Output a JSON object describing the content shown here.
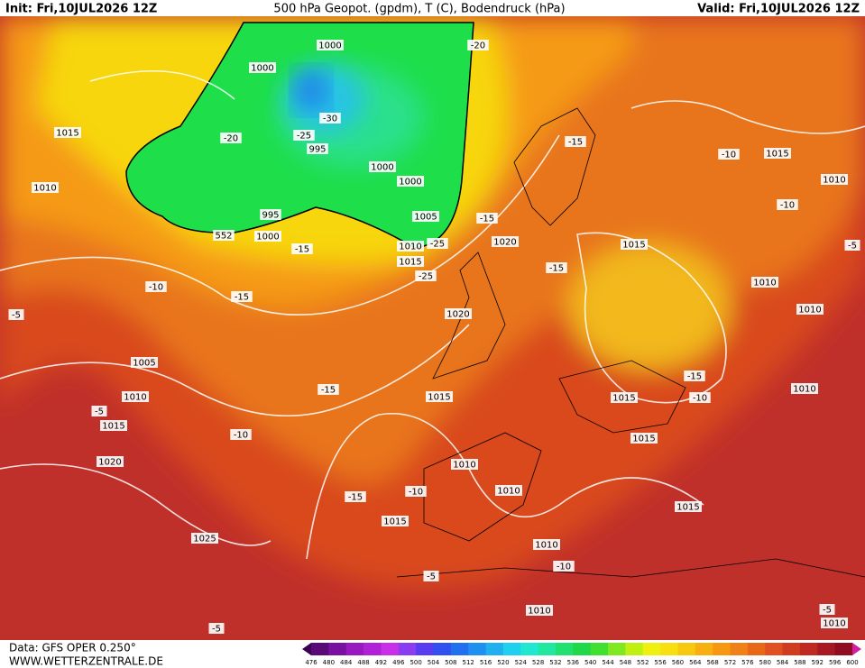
{
  "header": {
    "init": "Init: Fri,10JUL2026 12Z",
    "title": "500 hPa Geopot. (gpdm), T (C), Bodendruck (hPa)",
    "valid": "Valid: Fri,10JUL2026 12Z"
  },
  "footer": {
    "data": "Data: GFS OPER 0.250°",
    "site": "WWW.WETTERZENTRALE.DE"
  },
  "scale": [
    476,
    480,
    484,
    488,
    492,
    496,
    500,
    504,
    508,
    512,
    516,
    520,
    524,
    528,
    532,
    536,
    540,
    544,
    548,
    552,
    556,
    560,
    564,
    568,
    572,
    576,
    580,
    584,
    588,
    592,
    596,
    600
  ],
  "map_labels": [
    "1015",
    "1010",
    "1000",
    "1000",
    "-20",
    "-25",
    "-30",
    "995",
    "1000",
    "1000",
    "1005",
    "995",
    "1000",
    "552",
    "-15",
    "1010",
    "1015",
    "-25",
    "-25",
    "-20",
    "-15",
    "-15",
    "1020",
    "1015",
    "-15",
    "-10",
    "1015",
    "1010",
    "-10",
    "-5",
    "1010",
    "1010",
    "-10",
    "-15",
    "-5",
    "1020",
    "1005",
    "1010",
    "-5",
    "1015",
    "-15",
    "1015",
    "-15",
    "1015",
    "-10",
    "1010",
    "1015",
    "-10",
    "1020",
    "1010",
    "-15",
    "-10",
    "1010",
    "1015",
    "1015",
    "1025",
    "1010",
    "-10",
    "-5",
    "1010",
    "-5",
    "1010",
    "-5"
  ]
}
